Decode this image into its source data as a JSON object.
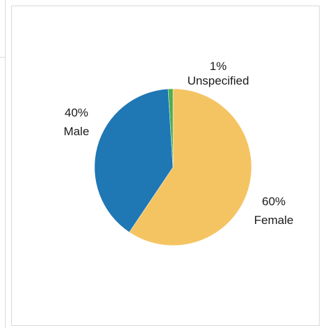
{
  "chart_data": {
    "type": "pie",
    "slices": [
      {
        "label": "Female",
        "value": 60,
        "value_text": "60%",
        "color": "#f5c462"
      },
      {
        "label": "Male",
        "value": 40,
        "value_text": "40%",
        "color": "#1f77b4"
      },
      {
        "label": "Unspecified",
        "value": 1,
        "value_text": "1%",
        "color": "#4caf50"
      }
    ],
    "title": "",
    "legend": "none",
    "start_angle_deg": 0,
    "direction": "clockwise"
  }
}
